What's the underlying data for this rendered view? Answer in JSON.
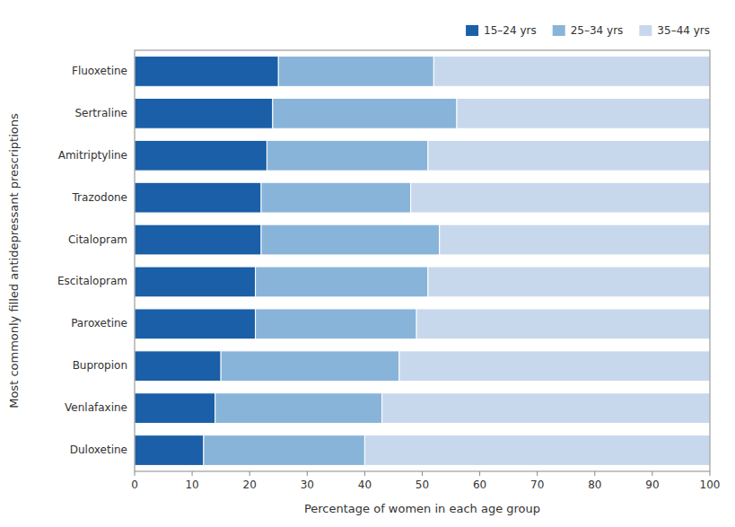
{
  "chart_data": {
    "type": "bar",
    "orientation": "horizontal",
    "stacked": true,
    "categories": [
      "Fluoxetine",
      "Sertraline",
      "Amitriptyline",
      "Trazodone",
      "Citalopram",
      "Escitalopram",
      "Paroxetine",
      "Bupropion",
      "Venlafaxine",
      "Duloxetine"
    ],
    "series": [
      {
        "name": "15–24 yrs",
        "color": "#1a5fa8",
        "values": [
          25,
          24,
          23,
          22,
          22,
          21,
          21,
          15,
          14,
          12
        ]
      },
      {
        "name": "25–34 yrs",
        "color": "#89b4d9",
        "values": [
          27,
          32,
          28,
          26,
          31,
          30,
          28,
          31,
          29,
          28
        ]
      },
      {
        "name": "35–44 yrs",
        "color": "#c8d8ec",
        "values": [
          48,
          44,
          49,
          52,
          47,
          49,
          51,
          54,
          57,
          60
        ]
      }
    ],
    "xlabel": "Percentage of women in each age group",
    "ylabel": "Most commonly filled antidepressant prescriptions",
    "xlim": [
      0,
      100
    ],
    "xticks": [
      0,
      10,
      20,
      30,
      40,
      50,
      60,
      70,
      80,
      90,
      100
    ],
    "grid": false,
    "legend": "upper right"
  }
}
